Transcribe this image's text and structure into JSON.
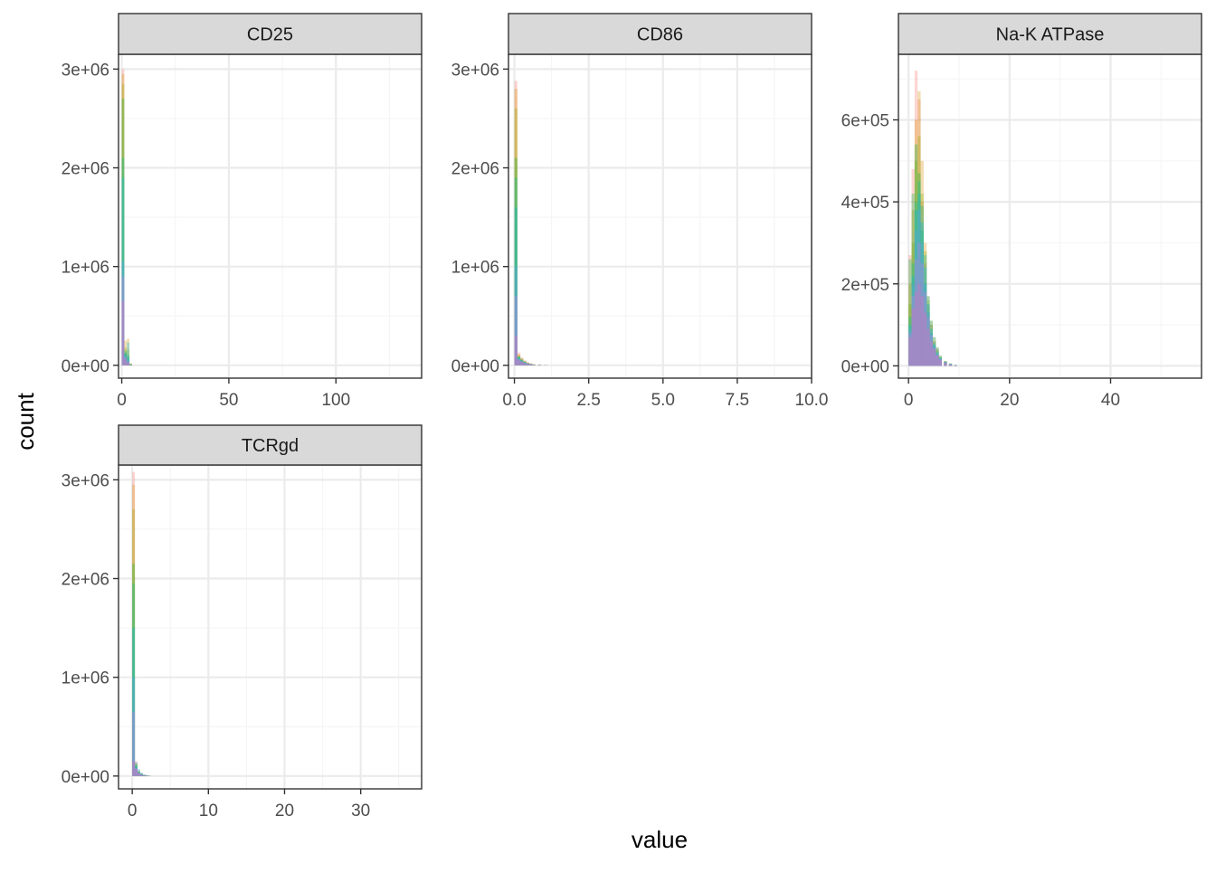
{
  "chart_data": {
    "type": "bar",
    "subtype": "faceted-histogram",
    "xlabel": "value",
    "ylabel": "count",
    "grid": true,
    "theme": "bw",
    "legend": "none",
    "colors": {
      "strip_fill": "#d9d9d9",
      "strip_border": "#333333",
      "panel_border": "#333333",
      "grid_major": "#ebebeb",
      "grid_minor": "#f5f5f5",
      "tick_label": "#4d4d4d",
      "series": [
        "#f8766d",
        "#d39200",
        "#93aa00",
        "#00ba38",
        "#00c19f",
        "#00b9e3",
        "#619cff",
        "#db72fb",
        "#ff61c3"
      ],
      "series_opacity": 0.3
    },
    "facets": [
      {
        "label": "CD25",
        "xlim": [
          -1.5,
          140
        ],
        "ylim": [
          -130000,
          3150000
        ],
        "x_ticks": [
          0,
          50,
          100
        ],
        "x_tick_labels": [
          "0",
          "50",
          "100"
        ],
        "y_ticks": [
          0,
          1000000,
          2000000,
          3000000
        ],
        "y_tick_labels": [
          "0e+00",
          "1e+06",
          "2e+06",
          "3e+06"
        ],
        "bin_width": 1.2,
        "series": [
          {
            "x": [
              0,
              1.2,
              2.4,
              3.6
            ],
            "y": [
              3000000,
              120000,
              40000,
              10000
            ]
          },
          {
            "x": [
              0,
              1.2,
              2.4,
              3.6
            ],
            "y": [
              2950000,
              250000,
              270000,
              20000
            ]
          },
          {
            "x": [
              0,
              1.2,
              2.4,
              3.6
            ],
            "y": [
              2850000,
              180000,
              160000,
              15000
            ]
          },
          {
            "x": [
              0,
              1.2,
              2.4,
              3.6
            ],
            "y": [
              2700000,
              150000,
              100000,
              10000
            ]
          },
          {
            "x": [
              0,
              1.2,
              2.4,
              3.6
            ],
            "y": [
              2100000,
              130000,
              80000,
              8000
            ]
          },
          {
            "x": [
              0,
              1.2,
              2.4,
              3.6
            ],
            "y": [
              1900000,
              120000,
              230000,
              10000
            ]
          },
          {
            "x": [
              0,
              1.2,
              2.4,
              3.6
            ],
            "y": [
              1050000,
              100000,
              60000,
              5000
            ]
          },
          {
            "x": [
              0,
              1.2,
              2.4,
              3.6
            ],
            "y": [
              900000,
              80000,
              40000,
              3000
            ]
          },
          {
            "x": [
              0,
              1.2,
              2.4,
              3.6
            ],
            "y": [
              650000,
              60000,
              25000,
              2000
            ]
          }
        ]
      },
      {
        "label": "CD86",
        "xlim": [
          -0.2,
          10.0
        ],
        "ylim": [
          -130000,
          3150000
        ],
        "x_ticks": [
          0,
          2.5,
          5,
          7.5,
          10
        ],
        "x_tick_labels": [
          "0.0",
          "2.5",
          "5.0",
          "7.5",
          "10.0"
        ],
        "y_ticks": [
          0,
          1000000,
          2000000,
          3000000
        ],
        "y_tick_labels": [
          "0e+00",
          "1e+06",
          "2e+06",
          "3e+06"
        ],
        "bin_width": 0.1,
        "series": [
          {
            "x": [
              0,
              0.1,
              0.2,
              0.3,
              0.4,
              0.5,
              0.6,
              0.8,
              1.0
            ],
            "y": [
              2880000,
              130000,
              80000,
              50000,
              30000,
              20000,
              12000,
              6000,
              2000
            ]
          },
          {
            "x": [
              0,
              0.1,
              0.2,
              0.3,
              0.4,
              0.5,
              0.6,
              0.8,
              1.0
            ],
            "y": [
              2800000,
              110000,
              70000,
              45000,
              28000,
              18000,
              10000,
              5000,
              2000
            ]
          },
          {
            "x": [
              0,
              0.1,
              0.2,
              0.3,
              0.4,
              0.5,
              0.6,
              0.8,
              1.0
            ],
            "y": [
              2600000,
              100000,
              65000,
              40000,
              25000,
              15000,
              9000,
              4000,
              1500
            ]
          },
          {
            "x": [
              0,
              0.1,
              0.2,
              0.3,
              0.4,
              0.5,
              0.6,
              0.8,
              1.0
            ],
            "y": [
              2100000,
              90000,
              60000,
              38000,
              22000,
              14000,
              8000,
              4000,
              1500
            ]
          },
          {
            "x": [
              0,
              0.1,
              0.2,
              0.3,
              0.4,
              0.5,
              0.6,
              0.8,
              1.0
            ],
            "y": [
              1900000,
              85000,
              55000,
              35000,
              20000,
              13000,
              7000,
              3500,
              1200
            ]
          },
          {
            "x": [
              0,
              0.1,
              0.2,
              0.3,
              0.4,
              0.5,
              0.6,
              0.8,
              1.0
            ],
            "y": [
              1600000,
              80000,
              50000,
              32000,
              19000,
              12000,
              7000,
              3000,
              1000
            ]
          },
          {
            "x": [
              0,
              0.1,
              0.2,
              0.3,
              0.4,
              0.5,
              0.6,
              0.8,
              1.0
            ],
            "y": [
              1000000,
              70000,
              45000,
              30000,
              18000,
              11000,
              6000,
              3000,
              1000
            ]
          },
          {
            "x": [
              0,
              0.1,
              0.2,
              0.3,
              0.4,
              0.5,
              0.6,
              0.8,
              1.0
            ],
            "y": [
              700000,
              60000,
              40000,
              25000,
              15000,
              10000,
              5000,
              2500,
              800
            ]
          },
          {
            "x": [
              0,
              0.1,
              0.2,
              0.3,
              0.4,
              0.5,
              0.6,
              0.8,
              1.0
            ],
            "y": [
              300000,
              50000,
              35000,
              22000,
              14000,
              9000,
              5000,
              2000,
              800
            ]
          }
        ]
      },
      {
        "label": "Na-K ATPase",
        "xlim": [
          -2.0,
          58
        ],
        "ylim": [
          -30000,
          760000
        ],
        "x_ticks": [
          0,
          20,
          40
        ],
        "x_tick_labels": [
          "0",
          "20",
          "40"
        ],
        "y_ticks": [
          0,
          200000,
          400000,
          600000
        ],
        "y_tick_labels": [
          "0e+00",
          "2e+05",
          "4e+05",
          "6e+05"
        ],
        "bin_width": 0.6,
        "series": [
          {
            "x": [
              0,
              0.6,
              1.2,
              1.8,
              2.4,
              3.0,
              3.6,
              4.2,
              4.8,
              5.4,
              6.0,
              7.0,
              8.0,
              9.0
            ],
            "y": [
              270000,
              480000,
              720000,
              650000,
              400000,
              250000,
              150000,
              100000,
              60000,
              40000,
              20000,
              10000,
              5000,
              2000
            ]
          },
          {
            "x": [
              0,
              0.6,
              1.2,
              1.8,
              2.4,
              3.0,
              3.6,
              4.2,
              4.8,
              5.4,
              6.0,
              7.0,
              8.0,
              9.0
            ],
            "y": [
              200000,
              380000,
              600000,
              670000,
              500000,
              300000,
              170000,
              110000,
              70000,
              45000,
              25000,
              12000,
              6000,
              2000
            ]
          },
          {
            "x": [
              0,
              0.6,
              1.2,
              1.8,
              2.4,
              3.0,
              3.6,
              4.2,
              4.8,
              5.4,
              6.0,
              7.0,
              8.0,
              9.0
            ],
            "y": [
              150000,
              300000,
              500000,
              560000,
              420000,
              280000,
              160000,
              100000,
              60000,
              40000,
              22000,
              11000,
              5000,
              2000
            ]
          },
          {
            "x": [
              0,
              0.6,
              1.2,
              1.8,
              2.4,
              3.0,
              3.6,
              4.2,
              4.8,
              5.4,
              6.0,
              7.0,
              8.0,
              9.0
            ],
            "y": [
              260000,
              420000,
              540000,
              470000,
              330000,
              200000,
              130000,
              80000,
              50000,
              30000,
              18000,
              9000,
              4000,
              1500
            ]
          },
          {
            "x": [
              0,
              0.6,
              1.2,
              1.8,
              2.4,
              3.0,
              3.6,
              4.2,
              4.8,
              5.4,
              6.0,
              7.0,
              8.0,
              9.0
            ],
            "y": [
              120000,
              250000,
              400000,
              450000,
              390000,
              270000,
              170000,
              110000,
              70000,
              45000,
              25000,
              12000,
              6000,
              2000
            ]
          },
          {
            "x": [
              0,
              0.6,
              1.2,
              1.8,
              2.4,
              3.0,
              3.6,
              4.2,
              4.8,
              5.4,
              6.0,
              7.0,
              8.0,
              9.0
            ],
            "y": [
              100000,
              220000,
              380000,
              420000,
              350000,
              240000,
              150000,
              90000,
              55000,
              35000,
              20000,
              10000,
              5000,
              2000
            ]
          },
          {
            "x": [
              0,
              0.6,
              1.2,
              1.8,
              2.4,
              3.0,
              3.6,
              4.2,
              4.8,
              5.4,
              6.0,
              7.0,
              8.0,
              9.0
            ],
            "y": [
              90000,
              200000,
              330000,
              380000,
              300000,
              200000,
              130000,
              80000,
              50000,
              30000,
              18000,
              9000,
              4000,
              1500
            ]
          },
          {
            "x": [
              0,
              0.6,
              1.2,
              1.8,
              2.4,
              3.0,
              3.6,
              4.2,
              4.8,
              5.4,
              6.0,
              7.0,
              8.0,
              9.0
            ],
            "y": [
              80000,
              170000,
              260000,
              300000,
              250000,
              180000,
              120000,
              75000,
              45000,
              28000,
              16000,
              8000,
              4000,
              1500
            ]
          },
          {
            "x": [
              0,
              0.6,
              1.2,
              1.8,
              2.4,
              3.0,
              3.6,
              4.2,
              4.8,
              5.4,
              6.0,
              7.0,
              8.0,
              9.0
            ],
            "y": [
              70000,
              140000,
              180000,
              200000,
              170000,
              130000,
              90000,
              60000,
              40000,
              25000,
              15000,
              8000,
              3000,
              1000
            ]
          }
        ]
      },
      {
        "label": "TCRgd",
        "xlim": [
          -1.8,
          38
        ],
        "ylim": [
          -130000,
          3150000
        ],
        "x_ticks": [
          0,
          10,
          20,
          30
        ],
        "x_tick_labels": [
          "0",
          "10",
          "20",
          "30"
        ],
        "y_ticks": [
          0,
          1000000,
          2000000,
          3000000
        ],
        "y_tick_labels": [
          "0e+00",
          "1e+06",
          "2e+06",
          "3e+06"
        ],
        "bin_width": 0.35,
        "series": [
          {
            "x": [
              0,
              0.35,
              0.7,
              1.05,
              1.4,
              1.75,
              2.1
            ],
            "y": [
              3080000,
              150000,
              60000,
              30000,
              15000,
              8000,
              3000
            ]
          },
          {
            "x": [
              0,
              0.35,
              0.7,
              1.05,
              1.4,
              1.75,
              2.1
            ],
            "y": [
              2950000,
              130000,
              50000,
              25000,
              12000,
              6000,
              2500
            ]
          },
          {
            "x": [
              0,
              0.35,
              0.7,
              1.05,
              1.4,
              1.75,
              2.1
            ],
            "y": [
              2700000,
              120000,
              45000,
              22000,
              10000,
              5000,
              2000
            ]
          },
          {
            "x": [
              0,
              0.35,
              0.7,
              1.05,
              1.4,
              1.75,
              2.1
            ],
            "y": [
              2150000,
              110000,
              40000,
              20000,
              9000,
              4500,
              2000
            ]
          },
          {
            "x": [
              0,
              0.35,
              0.7,
              1.05,
              1.4,
              1.75,
              2.1
            ],
            "y": [
              1950000,
              100000,
              38000,
              18000,
              8000,
              4000,
              1800
            ]
          },
          {
            "x": [
              0,
              0.35,
              0.7,
              1.05,
              1.4,
              1.75,
              2.1
            ],
            "y": [
              1500000,
              140000,
              70000,
              35000,
              15000,
              7000,
              3000
            ]
          },
          {
            "x": [
              0,
              0.35,
              0.7,
              1.05,
              1.4,
              1.75,
              2.1
            ],
            "y": [
              1000000,
              90000,
              35000,
              16000,
              7000,
              3500,
              1500
            ]
          },
          {
            "x": [
              0,
              0.35,
              0.7,
              1.05,
              1.4,
              1.75,
              2.1
            ],
            "y": [
              650000,
              80000,
              30000,
              14000,
              6000,
              3000,
              1200
            ]
          },
          {
            "x": [
              0,
              0.35,
              0.7,
              1.05,
              1.4,
              1.75,
              2.1
            ],
            "y": [
              150000,
              70000,
              28000,
              12000,
              5000,
              2500,
              1000
            ]
          }
        ]
      }
    ]
  }
}
